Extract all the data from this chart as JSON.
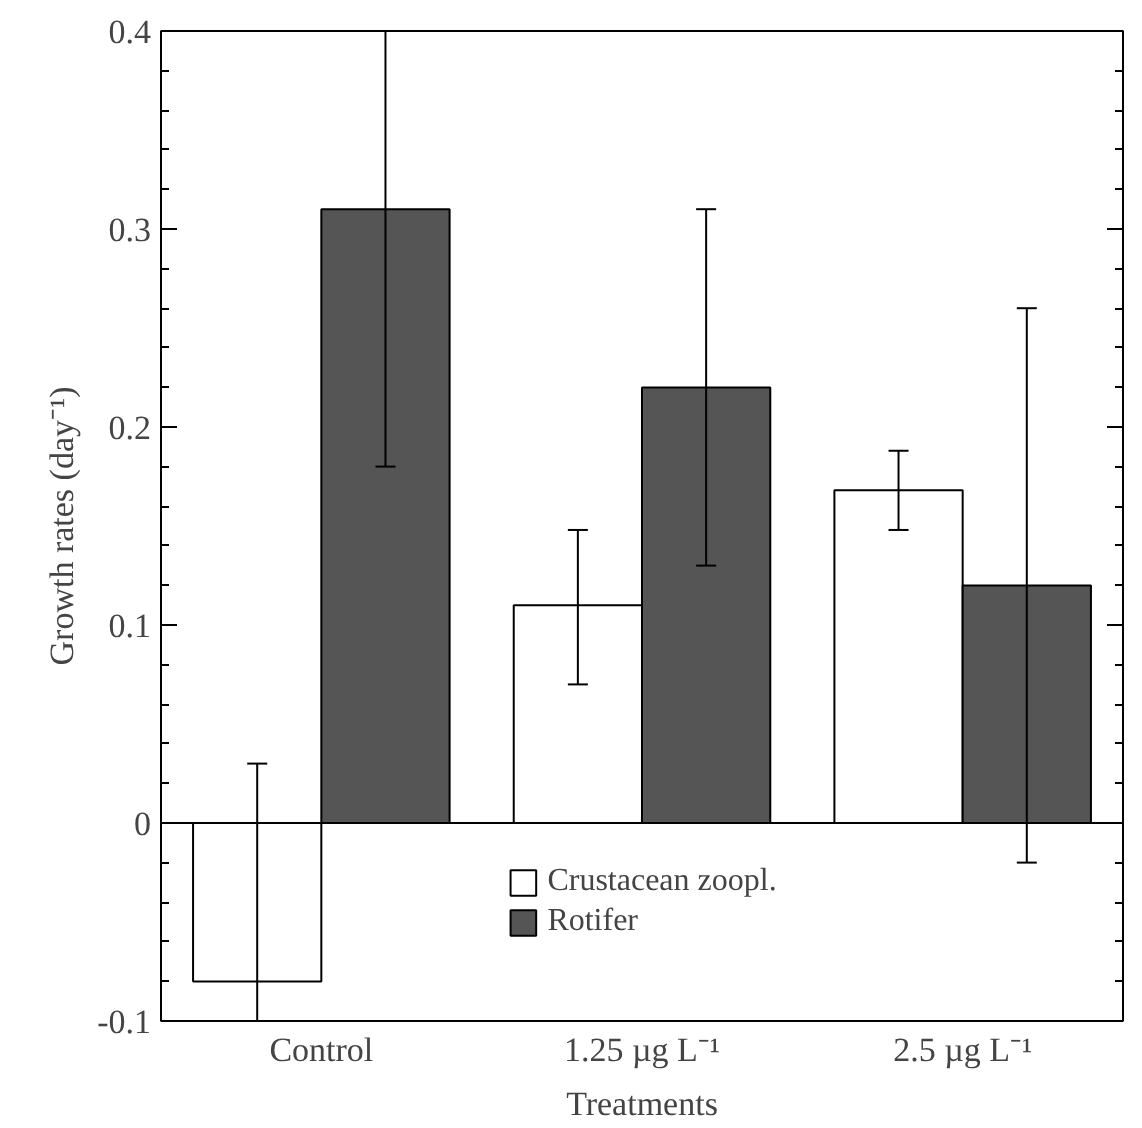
{
  "chart_data": {
    "type": "bar",
    "xlabel": "Treatments",
    "ylabel": "Growth rates (day⁻¹)",
    "categories": [
      "Control",
      "1.25 µg L⁻¹",
      "2.5 µg L⁻¹"
    ],
    "series": [
      {
        "name": "Crustacean zoopl.",
        "color": "#ffffff",
        "values": [
          -0.08,
          0.11,
          0.168
        ],
        "errors": [
          [
            -0.1,
            0.03
          ],
          [
            0.07,
            0.148
          ],
          [
            0.148,
            0.188
          ]
        ]
      },
      {
        "name": "Rotifer",
        "color": "#555555",
        "values": [
          0.31,
          0.22,
          0.12
        ],
        "errors": [
          [
            0.18,
            0.4
          ],
          [
            0.13,
            0.31
          ],
          [
            -0.02,
            0.26
          ]
        ]
      }
    ],
    "ylim": [
      -0.1,
      0.4
    ],
    "yticks": [
      -0.1,
      0,
      0.1,
      0.2,
      0.3,
      0.4
    ],
    "ref_lines": [
      {
        "axis": "y",
        "value": 0
      }
    ],
    "legend": "bottom"
  }
}
